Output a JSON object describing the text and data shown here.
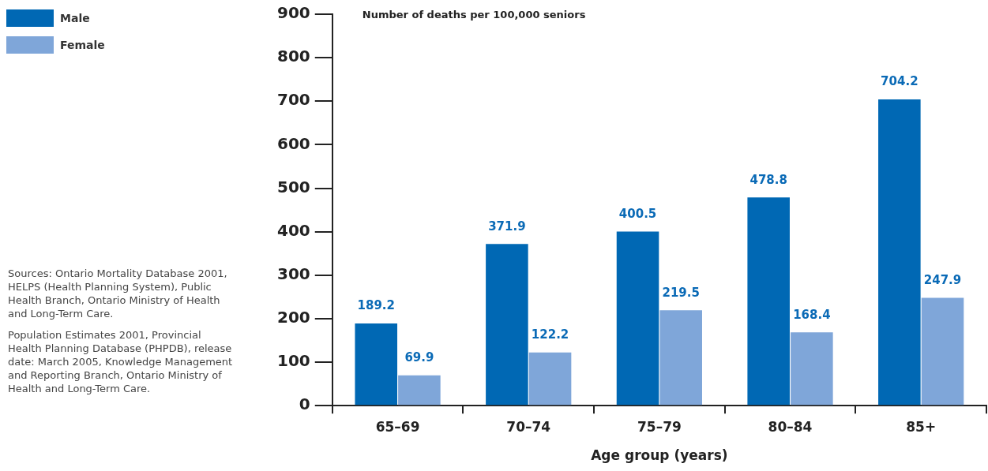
{
  "chart_data": {
    "type": "bar",
    "ylabel": "Number of deaths per 100,000 seniors",
    "xlabel": "Age group (years)",
    "categories": [
      "65–69",
      "70–74",
      "75–79",
      "80–84",
      "85+"
    ],
    "series": [
      {
        "name": "Male",
        "color": "#0068b4",
        "values": [
          189.2,
          371.9,
          400.5,
          478.8,
          704.2
        ]
      },
      {
        "name": "Female",
        "color": "#7fa6d9",
        "values": [
          69.9,
          122.2,
          219.5,
          168.4,
          247.9
        ]
      }
    ],
    "ylim": [
      0,
      900
    ],
    "yticks": [
      0,
      100,
      200,
      300,
      400,
      500,
      600,
      700,
      800,
      900
    ],
    "grid": false,
    "legend": "top left",
    "data_labels": true,
    "annotations": [
      "Sources: Ontario Mortality Database 2001, HELPS (Health Planning System), Public Health Branch, Ontario Ministry of Health and Long-Term Care.",
      "Population Estimates 2001, Provincial Health Planning Database (PHPDB), release date: March 2005, Knowledge Management and Reporting Branch, Ontario Ministry of Health and Long-Term Care."
    ]
  }
}
